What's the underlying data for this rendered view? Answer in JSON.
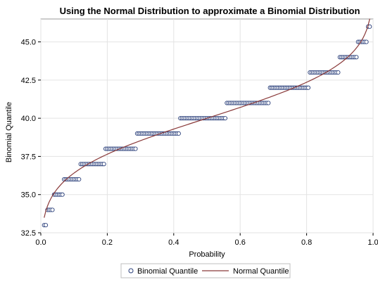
{
  "chart_data": {
    "type": "scatter",
    "title": "Using the Normal Distribution to approximate a Binomial Distribution",
    "xlabel": "Probability",
    "ylabel": "Binomial Quantile",
    "xlim": [
      0,
      1
    ],
    "ylim": [
      32.5,
      46.5
    ],
    "x_ticks": [
      "0.0",
      "0.2",
      "0.4",
      "0.6",
      "0.8",
      "1.0"
    ],
    "y_ticks": [
      "32.5",
      "35.0",
      "37.5",
      "40.0",
      "42.5",
      "45.0"
    ],
    "grid": true,
    "legend_position": "bottom",
    "series": [
      {
        "name": "Binomial Quantile",
        "kind": "markers",
        "marker": "open-circle",
        "color": "#2a3f7a",
        "step_thresholds": [
          {
            "from": 0.01,
            "value": 33
          },
          {
            "from": 0.02,
            "value": 34
          },
          {
            "from": 0.04,
            "value": 35
          },
          {
            "from": 0.07,
            "value": 36
          },
          {
            "from": 0.12,
            "value": 37
          },
          {
            "from": 0.195,
            "value": 38
          },
          {
            "from": 0.29,
            "value": 39
          },
          {
            "from": 0.42,
            "value": 40
          },
          {
            "from": 0.56,
            "value": 41
          },
          {
            "from": 0.69,
            "value": 42
          },
          {
            "from": 0.81,
            "value": 43
          },
          {
            "from": 0.9,
            "value": 44
          },
          {
            "from": 0.955,
            "value": 45
          },
          {
            "from": 0.985,
            "value": 46
          }
        ],
        "x_start": 0.01,
        "x_end": 0.99,
        "x_step": 0.005
      },
      {
        "name": "Normal Quantile",
        "kind": "line",
        "color": "#8a3a3a",
        "mean": 40.0,
        "sd": 2.8,
        "x_start": 0.01,
        "x_end": 0.99
      }
    ]
  }
}
